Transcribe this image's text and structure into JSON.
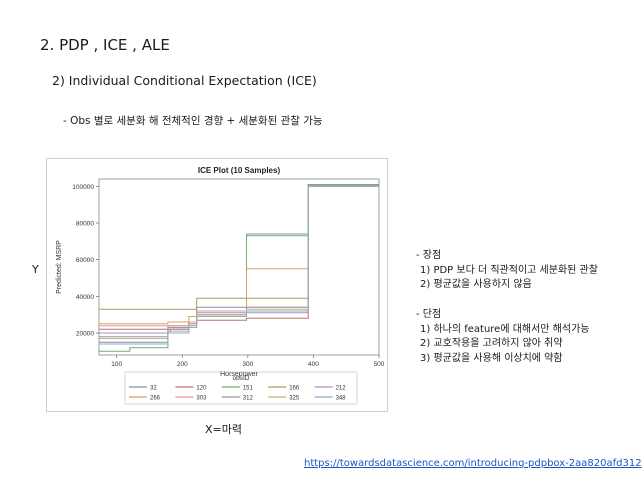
{
  "slide": {
    "title": "2. PDP , ICE , ALE",
    "section": "2) Individual Conditional Expectation (ICE)",
    "note": "- Obs 별로 세분화 해 전체적인 경향 + 세분화된 관찰 가능",
    "y_annotation": "Y",
    "x_annotation": "X=마력",
    "pros_heading": "- 장점",
    "pros": [
      "1) PDP 보다 더 직관적이고 세분화된 관찰",
      "2) 평균값을 사용하지 않음"
    ],
    "cons_heading": "- 단점",
    "cons": [
      "1) 하나의 feature에 대해서만 해석가능",
      "2) 교호작용을 고려하지 않아 취약",
      "3) 평균값을 사용해 이상치에 약함"
    ],
    "source_url": "https://towardsdatascience.com/introducing-pdpbox-2aa820afd312"
  },
  "chart_data": {
    "type": "line",
    "title": "ICE Plot (10 Samples)",
    "xlabel": "Horsepower",
    "ylabel": "Predicted: MSRP",
    "xlim": [
      73,
      500
    ],
    "ylim": [
      8000,
      104000
    ],
    "x_ticks": [
      100,
      200,
      300,
      400,
      500
    ],
    "y_ticks": [
      20000,
      40000,
      60000,
      80000,
      100000
    ],
    "x_tick_labels": [
      "100",
      "200",
      "300",
      "400",
      "500"
    ],
    "y_tick_labels": [
      "20000",
      "40000",
      "60000",
      "80000",
      "100000"
    ],
    "grid": false,
    "legend_title": "obsID",
    "legend_placement": "bottom",
    "x": [
      73,
      120,
      178,
      182,
      210,
      222,
      262,
      290,
      298,
      340,
      392,
      500
    ],
    "series": [
      {
        "name": "32",
        "color": "#8090b0",
        "values": [
          15000,
          15000,
          21000,
          22000,
          26000,
          34000,
          34000,
          34000,
          74000,
          74000,
          101000,
          101000
        ]
      },
      {
        "name": "120",
        "color": "#c07070",
        "values": [
          22000,
          22000,
          22000,
          22000,
          25000,
          27000,
          27000,
          27000,
          28000,
          28000,
          100000,
          100000
        ]
      },
      {
        "name": "151",
        "color": "#70b070",
        "values": [
          10000,
          12000,
          24000,
          24000,
          26000,
          30000,
          30000,
          30000,
          73000,
          73000,
          101000,
          101000
        ]
      },
      {
        "name": "166",
        "color": "#a0a060",
        "values": [
          33000,
          33000,
          33000,
          33000,
          33000,
          39000,
          39000,
          39000,
          39000,
          39000,
          100500,
          100500
        ]
      },
      {
        "name": "212",
        "color": "#a890c8",
        "values": [
          20000,
          20000,
          23000,
          23000,
          26000,
          31000,
          31000,
          31000,
          31000,
          31000,
          100000,
          100000
        ]
      },
      {
        "name": "266",
        "color": "#d8a060",
        "values": [
          25000,
          25000,
          26000,
          26000,
          29000,
          32000,
          32000,
          32000,
          55000,
          55000,
          100000,
          100000
        ]
      },
      {
        "name": "303",
        "color": "#e09898",
        "values": [
          24000,
          24000,
          24000,
          24000,
          26000,
          32000,
          32000,
          32000,
          34000,
          34000,
          100000,
          100000
        ]
      },
      {
        "name": "312",
        "color": "#999999",
        "values": [
          18000,
          18000,
          22000,
          22000,
          24000,
          30000,
          30000,
          30000,
          34000,
          34000,
          100500,
          100500
        ]
      },
      {
        "name": "325",
        "color": "#c8b080",
        "values": [
          17000,
          17000,
          21000,
          21000,
          25000,
          30000,
          30000,
          30000,
          33000,
          33000,
          100000,
          100000
        ]
      },
      {
        "name": "348",
        "color": "#8ab0c8",
        "values": [
          14000,
          14000,
          20000,
          20000,
          23000,
          29000,
          29000,
          29000,
          32000,
          32000,
          100000,
          100000
        ]
      }
    ]
  }
}
